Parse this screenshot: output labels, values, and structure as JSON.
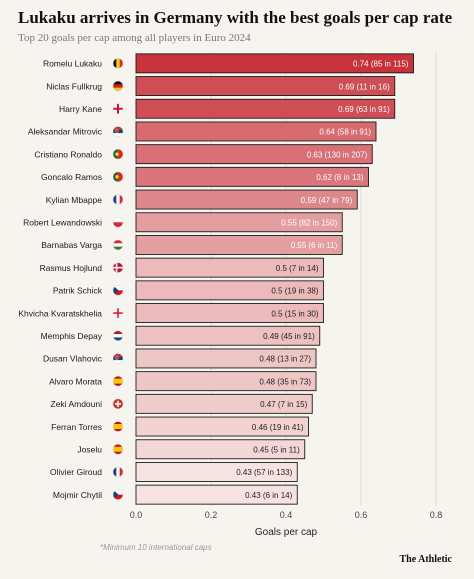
{
  "header": {
    "title": "Lukaku arrives in Germany with the best goals per cap rate",
    "subtitle": "Top 20 goals per cap among all players in Euro 2024"
  },
  "footnote": "*Minimum 10 international caps",
  "brand": "The Athletic",
  "chart_data": {
    "type": "bar",
    "orientation": "horizontal",
    "title": "Lukaku arrives in Germany with the best goals per cap rate",
    "subtitle": "Top 20 goals per cap among all players in Euro 2024",
    "xlabel": "Goals per cap",
    "xlim": [
      0,
      0.8
    ],
    "xticks": [
      "0.0",
      "0.2",
      "0.4",
      "0.6",
      "0.8"
    ],
    "grid": true,
    "bar_color_high": "#c8323a",
    "bar_color_low": "#f6e2e1",
    "categories": [
      "Romelu Lukaku",
      "Niclas Fullkrug",
      "Harry Kane",
      "Aleksandar Mitrovic",
      "Cristiano Ronaldo",
      "Goncalo Ramos",
      "Kylian Mbappe",
      "Robert Lewandowski",
      "Barnabas Varga",
      "Rasmus Hojlund",
      "Patrik Schick",
      "Khvicha Kvaratskhelia",
      "Memphis Depay",
      "Dusan Vlahovic",
      "Alvaro Morata",
      "Zeki Amdouni",
      "Ferran Torres",
      "Joselu",
      "Olivier Giroud",
      "Mojmir Chytil"
    ],
    "values": [
      0.74,
      0.69,
      0.69,
      0.64,
      0.63,
      0.62,
      0.59,
      0.55,
      0.55,
      0.5,
      0.5,
      0.5,
      0.49,
      0.48,
      0.48,
      0.47,
      0.46,
      0.45,
      0.43,
      0.43
    ],
    "labels": [
      "0.74 (85 in 115)",
      "0.69 (11 in 16)",
      "0.69 (63 in 91)",
      "0.64 (58 in 91)",
      "0.63 (130 in 207)",
      "0.62 (8 in 13)",
      "0.59 (47 in 79)",
      "0.55 (82 in 150)",
      "0.55 (6 in 11)",
      "0.5 (7 in 14)",
      "0.5 (19 in 38)",
      "0.5 (15 in 30)",
      "0.49 (45 in 91)",
      "0.48 (13 in 27)",
      "0.48 (35 in 73)",
      "0.47 (7 in 15)",
      "0.46 (19 in 41)",
      "0.45 (5 in 11)",
      "0.43 (57 in 133)",
      "0.43 (6 in 14)"
    ],
    "flags": [
      "belgium-flag-icon",
      "germany-flag-icon",
      "england-flag-icon",
      "serbia-flag-icon",
      "portugal-flag-icon",
      "portugal-flag-icon",
      "france-flag-icon",
      "poland-flag-icon",
      "hungary-flag-icon",
      "denmark-flag-icon",
      "czechia-flag-icon",
      "georgia-flag-icon",
      "netherlands-flag-icon",
      "serbia-flag-icon",
      "spain-flag-icon",
      "switzerland-flag-icon",
      "spain-flag-icon",
      "spain-flag-icon",
      "france-flag-icon",
      "czechia-flag-icon"
    ]
  }
}
